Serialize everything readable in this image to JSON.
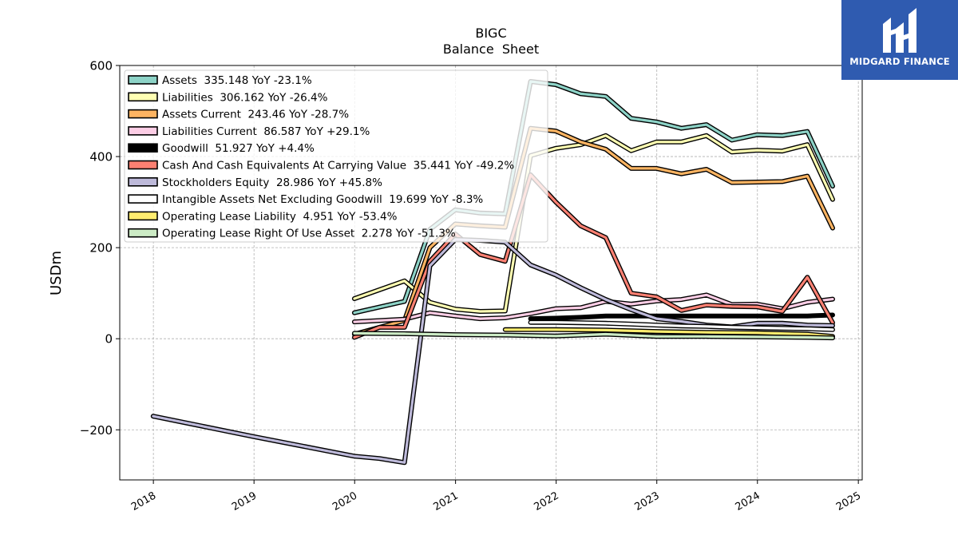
{
  "logo": {
    "text": "MIDGARD FINANCE"
  },
  "chart_data": {
    "type": "line",
    "title": "BIGC",
    "subtitle": "Balance  Sheet",
    "ylabel": "USDm",
    "xlabel": "",
    "ylim": [
      -310,
      600
    ],
    "xlim": [
      "2017-09-01",
      "2025-01-15"
    ],
    "yticks": [
      -200,
      0,
      200,
      400,
      600
    ],
    "xticks": [
      "2018",
      "2019",
      "2020",
      "2021",
      "2022",
      "2023",
      "2024",
      "2025"
    ],
    "grid": true,
    "legend_position": "top-left",
    "series": [
      {
        "name": "Assets  335.148 YoY -23.1%",
        "color": "#8dd3c7",
        "points": [
          [
            "2019-12-31",
            57
          ],
          [
            "2020-06-30",
            82
          ],
          [
            "2020-09-30",
            240
          ],
          [
            "2020-12-31",
            283
          ],
          [
            "2021-03-31",
            276
          ],
          [
            "2021-06-30",
            274
          ],
          [
            "2021-09-30",
            565
          ],
          [
            "2021-12-31",
            558
          ],
          [
            "2022-03-31",
            538
          ],
          [
            "2022-06-30",
            532
          ],
          [
            "2022-09-30",
            484
          ],
          [
            "2022-12-31",
            476
          ],
          [
            "2023-03-31",
            462
          ],
          [
            "2023-06-30",
            470
          ],
          [
            "2023-09-30",
            436
          ],
          [
            "2023-12-31",
            448
          ],
          [
            "2024-03-31",
            446
          ],
          [
            "2024-06-30",
            455
          ],
          [
            "2024-09-30",
            335
          ]
        ]
      },
      {
        "name": "Liabilities  306.162 YoY -26.4%",
        "color": "#ffffb3",
        "points": [
          [
            "2019-12-31",
            88
          ],
          [
            "2020-06-30",
            127
          ],
          [
            "2020-09-30",
            80
          ],
          [
            "2020-12-31",
            65
          ],
          [
            "2021-03-31",
            60
          ],
          [
            "2021-06-30",
            61
          ],
          [
            "2021-09-30",
            402
          ],
          [
            "2021-12-31",
            418
          ],
          [
            "2022-03-31",
            426
          ],
          [
            "2022-06-30",
            446
          ],
          [
            "2022-09-30",
            413
          ],
          [
            "2022-12-31",
            432
          ],
          [
            "2023-03-31",
            432
          ],
          [
            "2023-06-30",
            446
          ],
          [
            "2023-09-30",
            410
          ],
          [
            "2023-12-31",
            414
          ],
          [
            "2024-03-31",
            412
          ],
          [
            "2024-06-30",
            426
          ],
          [
            "2024-09-30",
            306
          ]
        ]
      },
      {
        "name": "Assets Current  243.46 YoY -28.7%",
        "color": "#fdb462",
        "points": [
          [
            "2019-12-31",
            10
          ],
          [
            "2020-06-30",
            40
          ],
          [
            "2020-09-30",
            200
          ],
          [
            "2020-12-31",
            252
          ],
          [
            "2021-03-31",
            248
          ],
          [
            "2021-06-30",
            245
          ],
          [
            "2021-09-30",
            462
          ],
          [
            "2021-12-31",
            456
          ],
          [
            "2022-03-31",
            432
          ],
          [
            "2022-06-30",
            416
          ],
          [
            "2022-09-30",
            374
          ],
          [
            "2022-12-31",
            374
          ],
          [
            "2023-03-31",
            362
          ],
          [
            "2023-06-30",
            372
          ],
          [
            "2023-09-30",
            343
          ],
          [
            "2023-12-31",
            344
          ],
          [
            "2024-03-31",
            345
          ],
          [
            "2024-06-30",
            357
          ],
          [
            "2024-09-30",
            243
          ]
        ]
      },
      {
        "name": "Liabilities Current  86.587 YoY +29.1%",
        "color": "#fccde5",
        "points": [
          [
            "2019-12-31",
            37
          ],
          [
            "2020-06-30",
            43
          ],
          [
            "2020-09-30",
            57
          ],
          [
            "2020-12-31",
            50
          ],
          [
            "2021-03-31",
            44
          ],
          [
            "2021-06-30",
            46
          ],
          [
            "2021-09-30",
            55
          ],
          [
            "2021-12-31",
            66
          ],
          [
            "2022-03-31",
            68
          ],
          [
            "2022-06-30",
            82
          ],
          [
            "2022-09-30",
            76
          ],
          [
            "2022-12-31",
            83
          ],
          [
            "2023-03-31",
            86
          ],
          [
            "2023-06-30",
            96
          ],
          [
            "2023-09-30",
            75
          ],
          [
            "2023-12-31",
            76
          ],
          [
            "2024-03-31",
            66
          ],
          [
            "2024-06-30",
            80
          ],
          [
            "2024-09-30",
            87
          ]
        ]
      },
      {
        "name": "Goodwill  51.927 YoY +4.4%",
        "color": "#000000",
        "points": [
          [
            "2021-09-30",
            44
          ],
          [
            "2021-12-31",
            45
          ],
          [
            "2022-03-31",
            47
          ],
          [
            "2022-06-30",
            50
          ],
          [
            "2022-09-30",
            50
          ],
          [
            "2022-12-31",
            50
          ],
          [
            "2023-03-31",
            50
          ],
          [
            "2023-06-30",
            50
          ],
          [
            "2023-09-30",
            50
          ],
          [
            "2023-12-31",
            50
          ],
          [
            "2024-03-31",
            50
          ],
          [
            "2024-06-30",
            50
          ],
          [
            "2024-09-30",
            52
          ]
        ]
      },
      {
        "name": "Cash And Cash Equivalents At Carrying Value  35.441 YoY -49.2%",
        "color": "#fb8072",
        "points": [
          [
            "2019-12-31",
            3
          ],
          [
            "2020-03-31",
            25
          ],
          [
            "2020-06-30",
            25
          ],
          [
            "2020-09-30",
            170
          ],
          [
            "2020-12-31",
            230
          ],
          [
            "2021-03-31",
            185
          ],
          [
            "2021-06-30",
            170
          ],
          [
            "2021-09-30",
            360
          ],
          [
            "2021-12-31",
            300
          ],
          [
            "2022-03-31",
            248
          ],
          [
            "2022-06-30",
            222
          ],
          [
            "2022-09-30",
            100
          ],
          [
            "2022-12-31",
            92
          ],
          [
            "2023-03-31",
            62
          ],
          [
            "2023-06-30",
            74
          ],
          [
            "2023-09-30",
            71
          ],
          [
            "2023-12-31",
            70
          ],
          [
            "2024-03-31",
            60
          ],
          [
            "2024-06-30",
            135
          ],
          [
            "2024-09-30",
            35
          ]
        ]
      },
      {
        "name": "Stockholders Equity  28.986 YoY +45.8%",
        "color": "#bebada",
        "points": [
          [
            "2017-12-31",
            -170
          ],
          [
            "2018-12-31",
            -215
          ],
          [
            "2019-12-31",
            -258
          ],
          [
            "2020-03-31",
            -263
          ],
          [
            "2020-06-30",
            -272
          ],
          [
            "2020-09-30",
            160
          ],
          [
            "2020-12-31",
            218
          ],
          [
            "2021-03-31",
            216
          ],
          [
            "2021-06-30",
            212
          ],
          [
            "2021-09-30",
            162
          ],
          [
            "2021-12-31",
            140
          ],
          [
            "2022-03-31",
            112
          ],
          [
            "2022-06-30",
            86
          ],
          [
            "2022-09-30",
            64
          ],
          [
            "2022-12-31",
            44
          ],
          [
            "2023-03-31",
            38
          ],
          [
            "2023-06-30",
            30
          ],
          [
            "2023-09-30",
            26
          ],
          [
            "2023-12-31",
            34
          ],
          [
            "2024-03-31",
            34
          ],
          [
            "2024-06-30",
            30
          ],
          [
            "2024-09-30",
            29
          ]
        ]
      },
      {
        "name": "Intangible Assets Net Excluding Goodwill  19.699 YoY -8.3%",
        "color": "#ffffff",
        "points": [
          [
            "2021-09-30",
            36
          ],
          [
            "2021-12-31",
            36
          ],
          [
            "2022-03-31",
            35
          ],
          [
            "2022-06-30",
            34
          ],
          [
            "2022-09-30",
            32
          ],
          [
            "2022-12-31",
            30
          ],
          [
            "2023-03-31",
            28
          ],
          [
            "2023-06-30",
            27
          ],
          [
            "2023-09-30",
            25
          ],
          [
            "2023-12-31",
            24
          ],
          [
            "2024-03-31",
            23
          ],
          [
            "2024-06-30",
            22
          ],
          [
            "2024-09-30",
            20
          ]
        ]
      },
      {
        "name": "Operating Lease Liability  4.951 YoY -53.4%",
        "color": "#ffed6f",
        "points": [
          [
            "2021-06-30",
            20
          ],
          [
            "2021-12-31",
            20
          ],
          [
            "2022-06-30",
            19
          ],
          [
            "2022-12-31",
            16
          ],
          [
            "2023-06-30",
            14
          ],
          [
            "2023-12-31",
            13
          ],
          [
            "2024-06-30",
            10
          ],
          [
            "2024-09-30",
            5
          ]
        ]
      },
      {
        "name": "Operating Lease Right Of Use Asset  2.278 YoY -51.3%",
        "color": "#ccebc5",
        "points": [
          [
            "2019-12-31",
            12
          ],
          [
            "2020-06-30",
            11
          ],
          [
            "2020-12-31",
            9
          ],
          [
            "2021-06-30",
            8
          ],
          [
            "2021-12-31",
            6
          ],
          [
            "2022-06-30",
            10
          ],
          [
            "2022-12-31",
            5
          ],
          [
            "2023-06-30",
            5
          ],
          [
            "2023-12-31",
            4
          ],
          [
            "2024-06-30",
            3
          ],
          [
            "2024-09-30",
            2
          ]
        ]
      }
    ]
  }
}
